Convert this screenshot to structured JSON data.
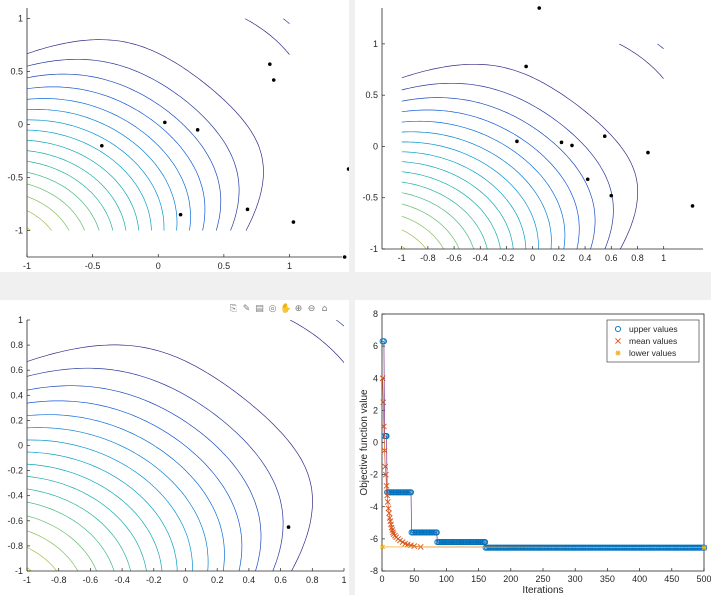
{
  "toolbar": {
    "icons": [
      "export-icon",
      "brush-icon",
      "datatip-icon",
      "rotate-icon",
      "pan-icon",
      "zoom-in-icon",
      "zoom-out-icon",
      "home-icon"
    ],
    "glyphs": [
      "⎘",
      "✎",
      "▤",
      "◎",
      "✋",
      "⊕",
      "⊖",
      "⌂"
    ]
  },
  "chart_data": [
    {
      "type": "contour",
      "xlim": [
        -1,
        1.4
      ],
      "ylim": [
        -1.25,
        1.1
      ],
      "field_range": [
        -1,
        1
      ],
      "x_ticks": [
        "-1",
        "-0.5",
        "0",
        "0.5",
        "1"
      ],
      "y_ticks": [
        "1",
        "0.5",
        "0",
        "-0.5",
        "-1"
      ],
      "points": [
        [
          0.85,
          0.57
        ],
        [
          0.88,
          0.42
        ],
        [
          0.05,
          0.02
        ],
        [
          0.3,
          -0.05
        ],
        [
          -0.43,
          -0.2
        ],
        [
          0.17,
          -0.85
        ],
        [
          0.68,
          -0.8
        ],
        [
          1.03,
          -0.92
        ],
        [
          1.45,
          -0.42
        ],
        [
          1.42,
          -1.25
        ]
      ]
    },
    {
      "type": "contour",
      "xlim": [
        -1.15,
        1.3
      ],
      "ylim": [
        -1,
        1.35
      ],
      "field_range": [
        -1,
        1
      ],
      "x_ticks": [
        "-1",
        "-0.8",
        "-0.6",
        "-0.4",
        "-0.2",
        "0",
        "0.2",
        "0.4",
        "0.6",
        "0.8",
        "1"
      ],
      "y_ticks": [
        "1",
        "0.5",
        "0",
        "-0.5",
        "-1"
      ],
      "points": [
        [
          0.05,
          1.35
        ],
        [
          -0.05,
          0.78
        ],
        [
          -0.12,
          0.05
        ],
        [
          0.22,
          0.04
        ],
        [
          0.3,
          0.01
        ],
        [
          0.55,
          0.1
        ],
        [
          0.88,
          -0.06
        ],
        [
          0.42,
          -0.32
        ],
        [
          0.6,
          -0.48
        ],
        [
          1.22,
          -0.58
        ]
      ]
    },
    {
      "type": "contour",
      "xlim": [
        -1,
        1
      ],
      "ylim": [
        -1,
        1
      ],
      "field_range": [
        -1,
        1
      ],
      "x_ticks": [
        "-1",
        "-0.8",
        "-0.6",
        "-0.4",
        "-0.2",
        "0",
        "0.2",
        "0.4",
        "0.6",
        "0.8",
        "1"
      ],
      "y_ticks": [
        "1",
        "0.8",
        "0.6",
        "0.4",
        "0.2",
        "0",
        "-0.2",
        "-0.4",
        "-0.6",
        "-0.8",
        "-1"
      ],
      "points": [
        [
          0.65,
          -0.65
        ]
      ]
    },
    {
      "type": "scatter",
      "xlabel": "Iterations",
      "ylabel": "Objective function value",
      "xlim": [
        0,
        500
      ],
      "ylim": [
        -8,
        8
      ],
      "x_ticks": [
        "0",
        "50",
        "100",
        "150",
        "200",
        "250",
        "300",
        "350",
        "400",
        "450",
        "500"
      ],
      "y_ticks": [
        "8",
        "6",
        "4",
        "2",
        "0",
        "-2",
        "-4",
        "-6",
        "-8"
      ],
      "legend": {
        "position": "top-right"
      },
      "series": [
        {
          "name": "upper values",
          "marker": "o",
          "color": "#0072BD",
          "points": [
            [
              1,
              6.3
            ],
            [
              3,
              6.3
            ],
            [
              4,
              0.4
            ],
            [
              6,
              0.4
            ],
            [
              7,
              0.4
            ],
            [
              8,
              -3.1
            ],
            [
              45,
              -3.1
            ],
            [
              46,
              -5.6
            ],
            [
              85,
              -5.6
            ],
            [
              86,
              -6.2
            ],
            [
              160,
              -6.2
            ],
            [
              161,
              -6.55
            ],
            [
              500,
              -6.55
            ]
          ]
        },
        {
          "name": "mean values",
          "marker": "x",
          "color": "#D95319",
          "points": [
            [
              1,
              4.0
            ],
            [
              2,
              2.5
            ],
            [
              3,
              1.0
            ],
            [
              4,
              -0.5
            ],
            [
              5,
              -1.5
            ],
            [
              6,
              -2.0
            ],
            [
              7,
              -2.7
            ],
            [
              8,
              -3.3
            ],
            [
              9,
              -3.7
            ],
            [
              10,
              -4.1
            ],
            [
              11,
              -4.4
            ],
            [
              12,
              -4.7
            ],
            [
              13,
              -4.9
            ],
            [
              14,
              -5.1
            ],
            [
              15,
              -5.3
            ],
            [
              16,
              -5.45
            ],
            [
              17,
              -5.6
            ],
            [
              18,
              -5.7
            ],
            [
              20,
              -5.8
            ],
            [
              22,
              -5.9
            ],
            [
              25,
              -6.0
            ],
            [
              28,
              -6.1
            ],
            [
              32,
              -6.2
            ],
            [
              36,
              -6.3
            ],
            [
              40,
              -6.35
            ],
            [
              45,
              -6.4
            ],
            [
              50,
              -6.45
            ],
            [
              60,
              -6.5
            ],
            [
              500,
              -6.55
            ]
          ]
        },
        {
          "name": "lower values",
          "marker": "*",
          "color": "#EDB120",
          "points": [
            [
              1,
              -6.5
            ],
            [
              500,
              -6.55
            ]
          ]
        }
      ]
    }
  ]
}
